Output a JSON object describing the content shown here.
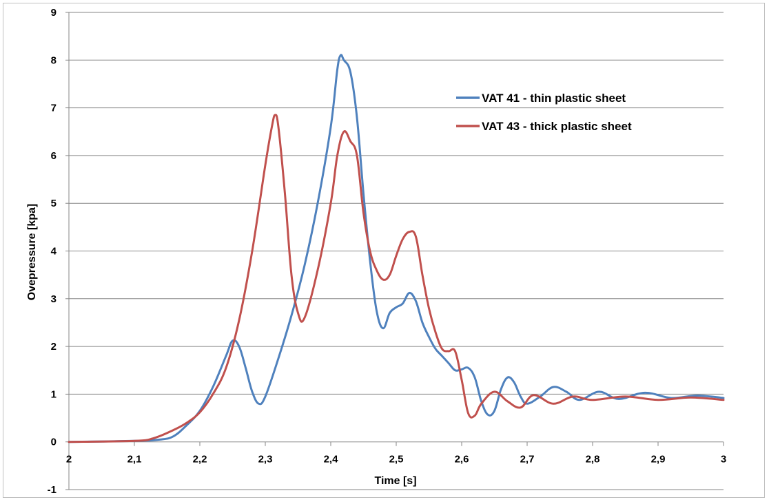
{
  "chart_data": {
    "type": "line",
    "title": "",
    "xlabel": "Time [s]",
    "ylabel": "Ovepressure  [kpa]",
    "xlim": [
      2,
      3
    ],
    "ylim": [
      -1,
      9
    ],
    "x_ticks": [
      "2",
      "2,1",
      "2,2",
      "2,3",
      "2,4",
      "2,5",
      "2,6",
      "2,7",
      "2,8",
      "2,9",
      "3"
    ],
    "y_ticks": [
      "-1",
      "0",
      "1",
      "2",
      "3",
      "4",
      "5",
      "6",
      "7",
      "8",
      "9"
    ],
    "grid": "horizontal",
    "legend_position": "top-right",
    "series": [
      {
        "name": "VAT 41 - thin plastic sheet",
        "color": "#4f81bd",
        "x": [
          2.0,
          2.1,
          2.14,
          2.16,
          2.18,
          2.2,
          2.22,
          2.24,
          2.25,
          2.26,
          2.27,
          2.28,
          2.29,
          2.3,
          2.32,
          2.34,
          2.36,
          2.38,
          2.4,
          2.41,
          2.415,
          2.42,
          2.43,
          2.44,
          2.45,
          2.46,
          2.47,
          2.48,
          2.49,
          2.5,
          2.51,
          2.52,
          2.53,
          2.54,
          2.55,
          2.56,
          2.57,
          2.58,
          2.59,
          2.6,
          2.61,
          2.62,
          2.63,
          2.64,
          2.65,
          2.66,
          2.67,
          2.68,
          2.69,
          2.7,
          2.72,
          2.74,
          2.76,
          2.78,
          2.81,
          2.84,
          2.88,
          2.92,
          2.96,
          3.0
        ],
        "y": [
          0.0,
          0.02,
          0.05,
          0.12,
          0.35,
          0.65,
          1.15,
          1.8,
          2.12,
          2.0,
          1.55,
          1.05,
          0.8,
          0.95,
          1.75,
          2.65,
          3.7,
          5.0,
          6.6,
          7.8,
          8.1,
          8.0,
          7.75,
          6.8,
          5.2,
          3.8,
          2.75,
          2.38,
          2.7,
          2.82,
          2.9,
          3.12,
          2.95,
          2.5,
          2.2,
          1.95,
          1.8,
          1.65,
          1.5,
          1.52,
          1.55,
          1.35,
          0.85,
          0.57,
          0.65,
          1.1,
          1.35,
          1.25,
          0.95,
          0.8,
          0.95,
          1.15,
          1.05,
          0.88,
          1.05,
          0.9,
          1.03,
          0.92,
          0.97,
          0.92
        ]
      },
      {
        "name": "VAT 43 - thick plastic sheet",
        "color": "#c0504d",
        "x": [
          2.0,
          2.1,
          2.13,
          2.16,
          2.18,
          2.2,
          2.22,
          2.24,
          2.26,
          2.28,
          2.3,
          2.31,
          2.315,
          2.32,
          2.33,
          2.34,
          2.35,
          2.36,
          2.38,
          2.4,
          2.41,
          2.42,
          2.43,
          2.44,
          2.45,
          2.46,
          2.47,
          2.48,
          2.49,
          2.5,
          2.51,
          2.52,
          2.53,
          2.54,
          2.55,
          2.56,
          2.57,
          2.58,
          2.59,
          2.6,
          2.61,
          2.62,
          2.63,
          2.65,
          2.67,
          2.69,
          2.71,
          2.74,
          2.77,
          2.8,
          2.85,
          2.9,
          2.95,
          3.0
        ],
        "y": [
          0.0,
          0.02,
          0.08,
          0.25,
          0.4,
          0.62,
          1.0,
          1.55,
          2.55,
          4.0,
          5.8,
          6.6,
          6.85,
          6.6,
          5.2,
          3.5,
          2.7,
          2.6,
          3.6,
          5.0,
          6.0,
          6.5,
          6.3,
          6.0,
          4.8,
          4.0,
          3.6,
          3.4,
          3.5,
          3.9,
          4.25,
          4.4,
          4.3,
          3.5,
          2.8,
          2.3,
          1.95,
          1.9,
          1.9,
          1.3,
          0.6,
          0.55,
          0.8,
          1.05,
          0.85,
          0.72,
          0.98,
          0.8,
          0.95,
          0.88,
          0.95,
          0.88,
          0.93,
          0.88
        ]
      }
    ]
  }
}
